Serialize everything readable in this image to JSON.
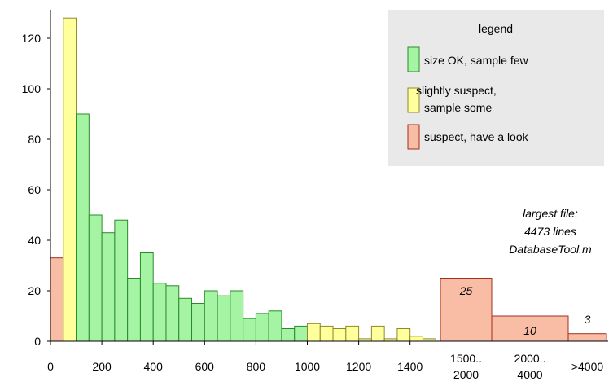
{
  "chart_data": {
    "type": "bar",
    "xlabel": "",
    "ylabel": "",
    "ylim": [
      0,
      130
    ],
    "yticks": [
      "0",
      "20",
      "40",
      "60",
      "80",
      "100",
      "120"
    ],
    "xticks": [
      "0",
      "200",
      "400",
      "600",
      "800",
      "1000",
      "1200",
      "1400"
    ],
    "bin_width": 50,
    "x_range": [
      0,
      1500
    ],
    "categories_info": {
      "ok": {
        "name": "size OK, sample few",
        "color": "#a4f4a4"
      },
      "some": {
        "name": "slightly suspect,",
        "name2": "sample some",
        "color": "#ffff9b"
      },
      "look": {
        "name": "suspect, have a look",
        "color": "#f9bda5"
      }
    },
    "bins": [
      {
        "x": 0,
        "value": 33,
        "cat": "look"
      },
      {
        "x": 50,
        "value": 128,
        "cat": "some"
      },
      {
        "x": 100,
        "value": 90,
        "cat": "ok"
      },
      {
        "x": 150,
        "value": 50,
        "cat": "ok"
      },
      {
        "x": 200,
        "value": 43,
        "cat": "ok"
      },
      {
        "x": 250,
        "value": 48,
        "cat": "ok"
      },
      {
        "x": 300,
        "value": 25,
        "cat": "ok"
      },
      {
        "x": 350,
        "value": 35,
        "cat": "ok"
      },
      {
        "x": 400,
        "value": 23,
        "cat": "ok"
      },
      {
        "x": 450,
        "value": 22,
        "cat": "ok"
      },
      {
        "x": 500,
        "value": 17,
        "cat": "ok"
      },
      {
        "x": 550,
        "value": 15,
        "cat": "ok"
      },
      {
        "x": 600,
        "value": 20,
        "cat": "ok"
      },
      {
        "x": 650,
        "value": 18,
        "cat": "ok"
      },
      {
        "x": 700,
        "value": 20,
        "cat": "ok"
      },
      {
        "x": 750,
        "value": 9,
        "cat": "ok"
      },
      {
        "x": 800,
        "value": 11,
        "cat": "ok"
      },
      {
        "x": 850,
        "value": 12,
        "cat": "ok"
      },
      {
        "x": 900,
        "value": 5,
        "cat": "ok"
      },
      {
        "x": 950,
        "value": 6,
        "cat": "ok"
      },
      {
        "x": 1000,
        "value": 7,
        "cat": "some"
      },
      {
        "x": 1050,
        "value": 6,
        "cat": "some"
      },
      {
        "x": 1100,
        "value": 5,
        "cat": "some"
      },
      {
        "x": 1150,
        "value": 6,
        "cat": "some"
      },
      {
        "x": 1200,
        "value": 1,
        "cat": "some"
      },
      {
        "x": 1250,
        "value": 6,
        "cat": "some"
      },
      {
        "x": 1300,
        "value": 1,
        "cat": "some"
      },
      {
        "x": 1350,
        "value": 5,
        "cat": "some"
      },
      {
        "x": 1400,
        "value": 2,
        "cat": "some"
      },
      {
        "x": 1450,
        "value": 1,
        "cat": "some"
      }
    ],
    "tail_bins": [
      {
        "label1": "1500..",
        "label2": "2000",
        "value": 25,
        "value_label": "25",
        "cat": "look"
      },
      {
        "label1": "2000..",
        "label2": "4000",
        "value": 10,
        "value_label": "10",
        "cat": "look"
      },
      {
        "label1": ">4000",
        "label2": "",
        "value": 3,
        "value_label": "3",
        "cat": "look"
      }
    ],
    "legend": {
      "title": "legend",
      "placement": "top-right"
    },
    "annotation": {
      "line1": "largest file:",
      "line2": "4473 lines",
      "line3": "DatabaseTool.m"
    }
  }
}
